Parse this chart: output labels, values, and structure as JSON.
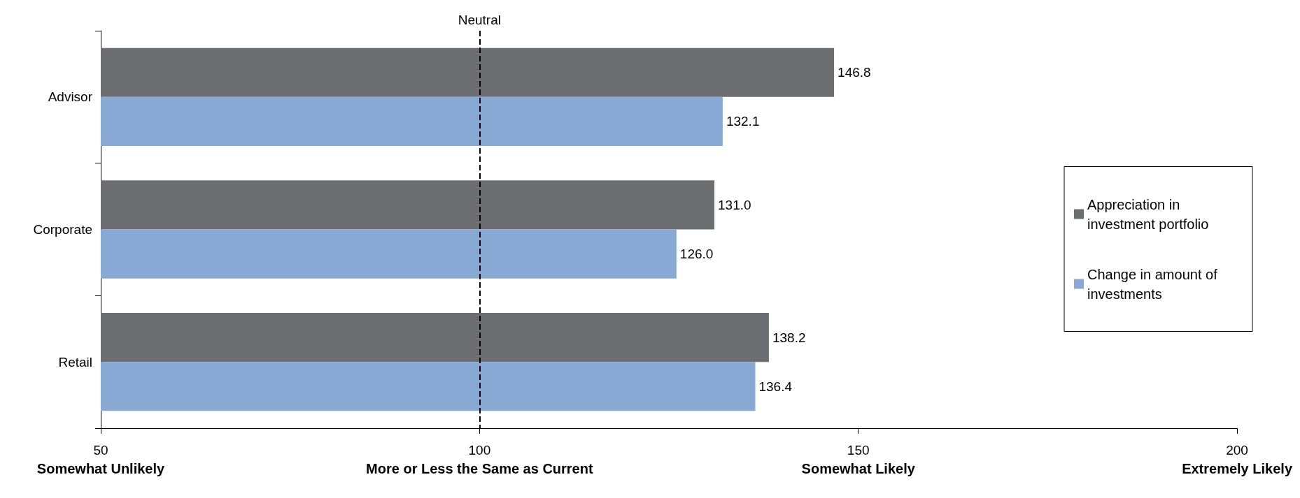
{
  "chart_data": {
    "type": "bar",
    "orientation": "horizontal",
    "categories": [
      "Advisor",
      "Corporate",
      "Retail"
    ],
    "series": [
      {
        "name": "Appreciation in investment portfolio",
        "color": "#6d6e71",
        "values": [
          146.8,
          131.0,
          138.2
        ],
        "value_labels": [
          "146.8",
          "131.0",
          "138.2"
        ]
      },
      {
        "name": "Change in amount of investments",
        "color": "#87a9d4",
        "values": [
          132.1,
          126.0,
          136.4
        ],
        "value_labels": [
          "132.1",
          "126.0",
          "136.4"
        ]
      }
    ],
    "xlim": [
      50,
      200
    ],
    "xticks": [
      {
        "value": 50,
        "label": "50\nSomewhat Unlikely"
      },
      {
        "value": 100,
        "label": "100\nMore or Less the Same as Current"
      },
      {
        "value": 150,
        "label": "150\nSomewhat Likely"
      },
      {
        "value": 200,
        "label": "200\nExtremely Likely"
      }
    ],
    "ref_lines": [
      {
        "axis": "x",
        "value": 100,
        "label": "Neutral",
        "color": "#000000",
        "line_style": "dashed"
      }
    ],
    "legend": "right",
    "grid": false
  }
}
